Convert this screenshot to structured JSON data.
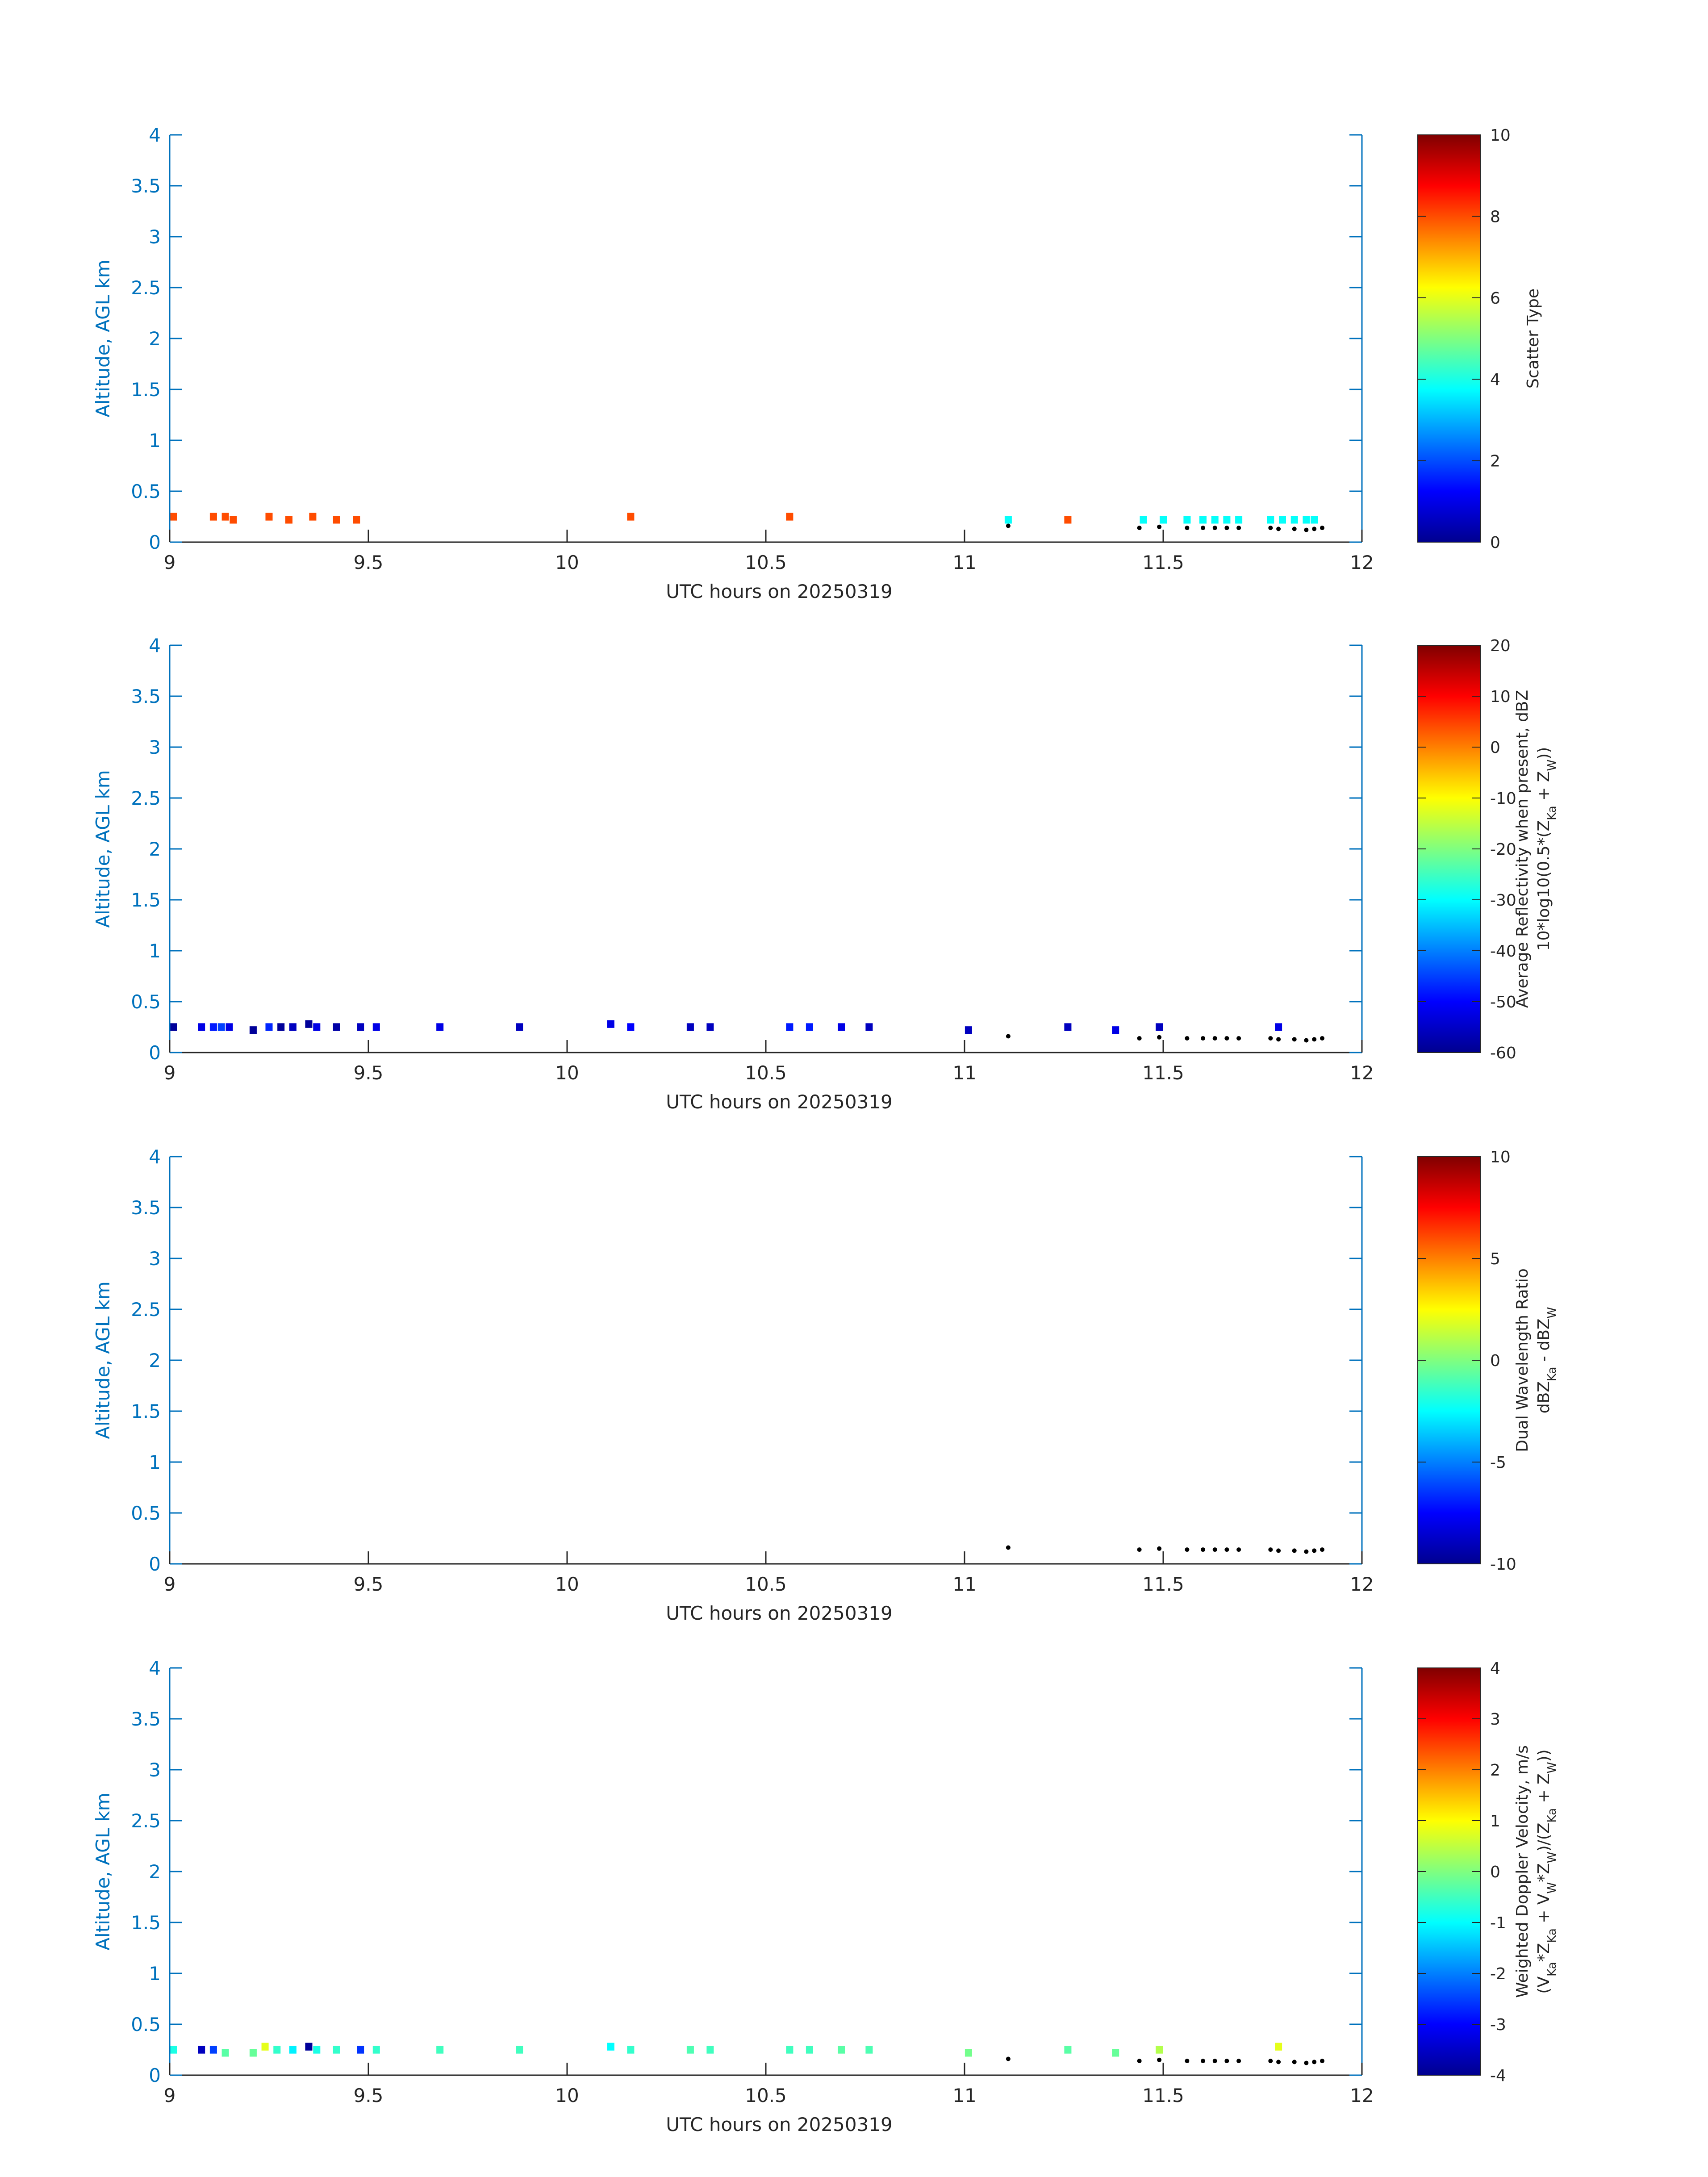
{
  "chart_data": [
    {
      "type": "heatmap",
      "xlabel": "UTC hours on 20250319",
      "ylabel": "Altitude, AGL km",
      "xlim": [
        9,
        12
      ],
      "ylim": [
        0,
        4
      ],
      "xticks": [
        "9",
        "9.5",
        "10",
        "10.5",
        "11",
        "11.5",
        "12"
      ],
      "yticks": [
        "0",
        "0.5",
        "1",
        "1.5",
        "2",
        "2.5",
        "3",
        "3.5",
        "4"
      ],
      "colorbar": {
        "label_lines": [
          "Scatter Type"
        ],
        "clim": [
          0,
          10
        ],
        "ticks": [
          "0",
          "2",
          "4",
          "6",
          "8",
          "10"
        ],
        "colormap": "jet"
      },
      "cells": [
        {
          "x": 9.01,
          "y": 0.25,
          "v": 8
        },
        {
          "x": 9.11,
          "y": 0.25,
          "v": 8
        },
        {
          "x": 9.14,
          "y": 0.25,
          "v": 8
        },
        {
          "x": 9.16,
          "y": 0.22,
          "v": 8
        },
        {
          "x": 9.25,
          "y": 0.25,
          "v": 8
        },
        {
          "x": 9.3,
          "y": 0.22,
          "v": 8
        },
        {
          "x": 9.36,
          "y": 0.25,
          "v": 8
        },
        {
          "x": 9.42,
          "y": 0.22,
          "v": 8
        },
        {
          "x": 9.47,
          "y": 0.22,
          "v": 8
        },
        {
          "x": 10.16,
          "y": 0.25,
          "v": 8
        },
        {
          "x": 10.56,
          "y": 0.25,
          "v": 8
        },
        {
          "x": 11.11,
          "y": 0.22,
          "v": 3.8
        },
        {
          "x": 11.26,
          "y": 0.22,
          "v": 8
        },
        {
          "x": 11.45,
          "y": 0.22,
          "v": 3.8
        },
        {
          "x": 11.5,
          "y": 0.22,
          "v": 3.8
        },
        {
          "x": 11.56,
          "y": 0.22,
          "v": 3.8
        },
        {
          "x": 11.6,
          "y": 0.22,
          "v": 3.8
        },
        {
          "x": 11.63,
          "y": 0.22,
          "v": 3.8
        },
        {
          "x": 11.66,
          "y": 0.22,
          "v": 3.8
        },
        {
          "x": 11.69,
          "y": 0.22,
          "v": 3.8
        },
        {
          "x": 11.77,
          "y": 0.22,
          "v": 3.8
        },
        {
          "x": 11.8,
          "y": 0.22,
          "v": 3.8
        },
        {
          "x": 11.83,
          "y": 0.22,
          "v": 3.8
        },
        {
          "x": 11.86,
          "y": 0.22,
          "v": 3.8
        },
        {
          "x": 11.88,
          "y": 0.22,
          "v": 3.8
        }
      ]
    },
    {
      "type": "heatmap",
      "xlabel": "UTC hours on 20250319",
      "ylabel": "Altitude, AGL km",
      "xlim": [
        9,
        12
      ],
      "ylim": [
        0,
        4
      ],
      "xticks": [
        "9",
        "9.5",
        "10",
        "10.5",
        "11",
        "11.5",
        "12"
      ],
      "yticks": [
        "0",
        "0.5",
        "1",
        "1.5",
        "2",
        "2.5",
        "3",
        "3.5",
        "4"
      ],
      "colorbar": {
        "label_lines": [
          "Average Reflectivity when present, dBZ",
          "10*log10(0.5*(Z_Ka + Z_W))"
        ],
        "clim": [
          -60,
          20
        ],
        "ticks": [
          "-60",
          "-50",
          "-40",
          "-30",
          "-20",
          "-10",
          "0",
          "10",
          "20"
        ],
        "colormap": "jet"
      },
      "cells": [
        {
          "x": 9.01,
          "y": 0.25,
          "v": -58
        },
        {
          "x": 9.08,
          "y": 0.25,
          "v": -52
        },
        {
          "x": 9.11,
          "y": 0.25,
          "v": -48
        },
        {
          "x": 9.13,
          "y": 0.25,
          "v": -45
        },
        {
          "x": 9.15,
          "y": 0.25,
          "v": -52
        },
        {
          "x": 9.21,
          "y": 0.22,
          "v": -58
        },
        {
          "x": 9.25,
          "y": 0.25,
          "v": -47
        },
        {
          "x": 9.28,
          "y": 0.25,
          "v": -58
        },
        {
          "x": 9.31,
          "y": 0.25,
          "v": -55
        },
        {
          "x": 9.35,
          "y": 0.28,
          "v": -58
        },
        {
          "x": 9.37,
          "y": 0.25,
          "v": -52
        },
        {
          "x": 9.42,
          "y": 0.25,
          "v": -57
        },
        {
          "x": 9.48,
          "y": 0.25,
          "v": -55
        },
        {
          "x": 9.52,
          "y": 0.25,
          "v": -52
        },
        {
          "x": 9.68,
          "y": 0.25,
          "v": -52
        },
        {
          "x": 9.88,
          "y": 0.25,
          "v": -55
        },
        {
          "x": 10.11,
          "y": 0.28,
          "v": -52
        },
        {
          "x": 10.16,
          "y": 0.25,
          "v": -50
        },
        {
          "x": 10.31,
          "y": 0.25,
          "v": -55
        },
        {
          "x": 10.36,
          "y": 0.25,
          "v": -55
        },
        {
          "x": 10.56,
          "y": 0.25,
          "v": -48
        },
        {
          "x": 10.61,
          "y": 0.25,
          "v": -48
        },
        {
          "x": 10.69,
          "y": 0.25,
          "v": -52
        },
        {
          "x": 10.76,
          "y": 0.25,
          "v": -55
        },
        {
          "x": 11.01,
          "y": 0.22,
          "v": -55
        },
        {
          "x": 11.26,
          "y": 0.25,
          "v": -55
        },
        {
          "x": 11.38,
          "y": 0.22,
          "v": -52
        },
        {
          "x": 11.49,
          "y": 0.25,
          "v": -55
        },
        {
          "x": 11.79,
          "y": 0.25,
          "v": -52
        }
      ]
    },
    {
      "type": "heatmap",
      "xlabel": "UTC hours on 20250319",
      "ylabel": "Altitude, AGL km",
      "xlim": [
        9,
        12
      ],
      "ylim": [
        0,
        4
      ],
      "xticks": [
        "9",
        "9.5",
        "10",
        "10.5",
        "11",
        "11.5",
        "12"
      ],
      "yticks": [
        "0",
        "0.5",
        "1",
        "1.5",
        "2",
        "2.5",
        "3",
        "3.5",
        "4"
      ],
      "colorbar": {
        "label_lines": [
          "Dual Wavelength Ratio",
          "dBZ_Ka - dBZ_W"
        ],
        "clim": [
          -10,
          10
        ],
        "ticks": [
          "-10",
          "-5",
          "0",
          "5",
          "10"
        ],
        "colormap": "jet"
      },
      "cells": []
    },
    {
      "type": "heatmap",
      "xlabel": "UTC hours on 20250319",
      "ylabel": "Altitude, AGL km",
      "xlim": [
        9,
        12
      ],
      "ylim": [
        0,
        4
      ],
      "xticks": [
        "9",
        "9.5",
        "10",
        "10.5",
        "11",
        "11.5",
        "12"
      ],
      "yticks": [
        "0",
        "0.5",
        "1",
        "1.5",
        "2",
        "2.5",
        "3",
        "3.5",
        "4"
      ],
      "colorbar": {
        "label_lines": [
          "Weighted Doppler Velocity, m/s",
          "(V_Ka*Z_Ka + V_W*Z_W)/(Z_Ka + Z_W))"
        ],
        "clim": [
          -4,
          4
        ],
        "ticks": [
          "-4",
          "-3",
          "-2",
          "-1",
          "0",
          "1",
          "2",
          "3",
          "4"
        ],
        "colormap": "jet"
      },
      "cells": [
        {
          "x": 9.01,
          "y": 0.25,
          "v": -0.8
        },
        {
          "x": 9.08,
          "y": 0.25,
          "v": -3.5
        },
        {
          "x": 9.11,
          "y": 0.25,
          "v": -2.5
        },
        {
          "x": 9.14,
          "y": 0.22,
          "v": -0.3
        },
        {
          "x": 9.21,
          "y": 0.22,
          "v": -0.2
        },
        {
          "x": 9.24,
          "y": 0.28,
          "v": 0.8
        },
        {
          "x": 9.27,
          "y": 0.25,
          "v": -0.6
        },
        {
          "x": 9.31,
          "y": 0.25,
          "v": -1.1
        },
        {
          "x": 9.35,
          "y": 0.28,
          "v": -3.8
        },
        {
          "x": 9.37,
          "y": 0.25,
          "v": -0.8
        },
        {
          "x": 9.42,
          "y": 0.25,
          "v": -0.6
        },
        {
          "x": 9.48,
          "y": 0.25,
          "v": -2.6
        },
        {
          "x": 9.52,
          "y": 0.25,
          "v": -0.6
        },
        {
          "x": 9.68,
          "y": 0.25,
          "v": -0.5
        },
        {
          "x": 9.88,
          "y": 0.25,
          "v": -0.5
        },
        {
          "x": 10.11,
          "y": 0.28,
          "v": -1.0
        },
        {
          "x": 10.16,
          "y": 0.25,
          "v": -0.6
        },
        {
          "x": 10.31,
          "y": 0.25,
          "v": -0.4
        },
        {
          "x": 10.36,
          "y": 0.25,
          "v": -0.5
        },
        {
          "x": 10.56,
          "y": 0.25,
          "v": -0.5
        },
        {
          "x": 10.61,
          "y": 0.25,
          "v": -0.5
        },
        {
          "x": 10.69,
          "y": 0.25,
          "v": -0.3
        },
        {
          "x": 10.76,
          "y": 0.25,
          "v": -0.4
        },
        {
          "x": 11.01,
          "y": 0.22,
          "v": -0.1
        },
        {
          "x": 11.26,
          "y": 0.25,
          "v": -0.3
        },
        {
          "x": 11.38,
          "y": 0.22,
          "v": -0.2
        },
        {
          "x": 11.49,
          "y": 0.25,
          "v": 0.4
        },
        {
          "x": 11.79,
          "y": 0.28,
          "v": 0.8
        }
      ]
    }
  ],
  "markers": {
    "points": [
      {
        "x": 11.11,
        "y": 0.16
      },
      {
        "x": 11.44,
        "y": 0.14
      },
      {
        "x": 11.49,
        "y": 0.15
      },
      {
        "x": 11.56,
        "y": 0.14
      },
      {
        "x": 11.6,
        "y": 0.14
      },
      {
        "x": 11.63,
        "y": 0.14
      },
      {
        "x": 11.66,
        "y": 0.14
      },
      {
        "x": 11.69,
        "y": 0.14
      },
      {
        "x": 11.77,
        "y": 0.14
      },
      {
        "x": 11.79,
        "y": 0.13
      },
      {
        "x": 11.83,
        "y": 0.13
      },
      {
        "x": 11.86,
        "y": 0.12
      },
      {
        "x": 11.88,
        "y": 0.13
      },
      {
        "x": 11.9,
        "y": 0.14
      }
    ]
  }
}
